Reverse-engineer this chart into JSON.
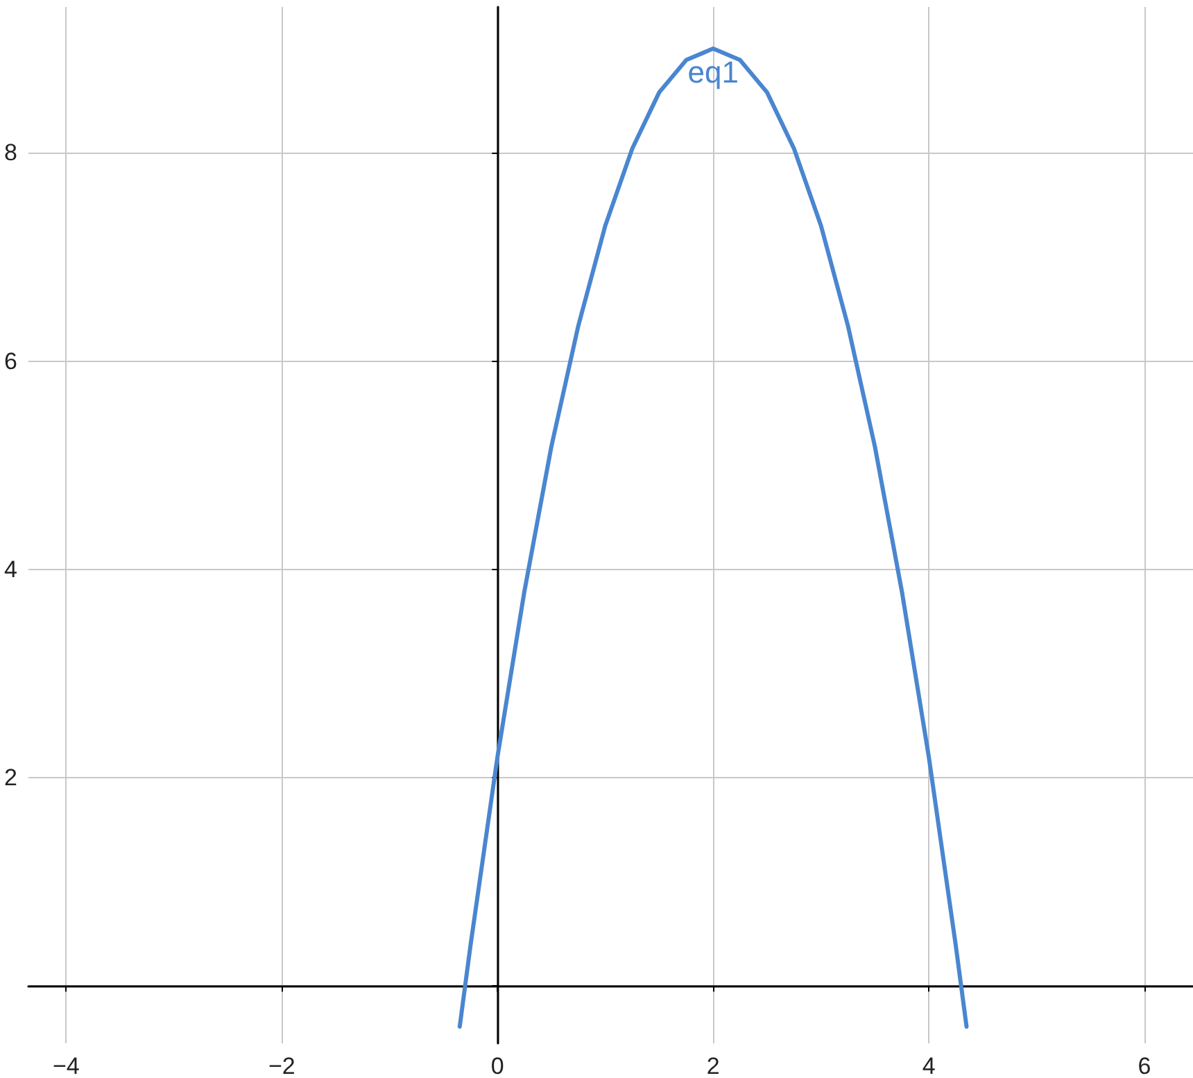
{
  "chart_data": {
    "type": "line",
    "x": [
      -0.35,
      -0.25,
      0,
      0.25,
      0.5,
      0.75,
      1,
      1.25,
      1.5,
      1.75,
      2,
      2.25,
      2.5,
      2.75,
      3,
      3.25,
      3.5,
      3.75,
      4,
      4.25,
      4.35
    ],
    "series": [
      {
        "name": "eq1",
        "color": "#4a86d0",
        "values": [
          -0.39,
          0.39,
          2.2,
          3.79,
          5.18,
          6.34,
          7.3,
          8.04,
          8.58,
          8.89,
          9,
          8.89,
          8.58,
          8.04,
          7.3,
          6.34,
          5.18,
          3.79,
          2.2,
          0.39,
          -0.39
        ]
      }
    ],
    "xlim": [
      -4.35,
      6.45
    ],
    "ylim": [
      -0.55,
      9.4
    ],
    "xticks": [
      -4,
      -2,
      0,
      2,
      4,
      6
    ],
    "yticks": [
      {
        "value": 0,
        "label": null
      },
      2,
      4,
      6,
      8
    ],
    "grid": true,
    "marker": "none",
    "line_style": "solid",
    "legend": false
  }
}
